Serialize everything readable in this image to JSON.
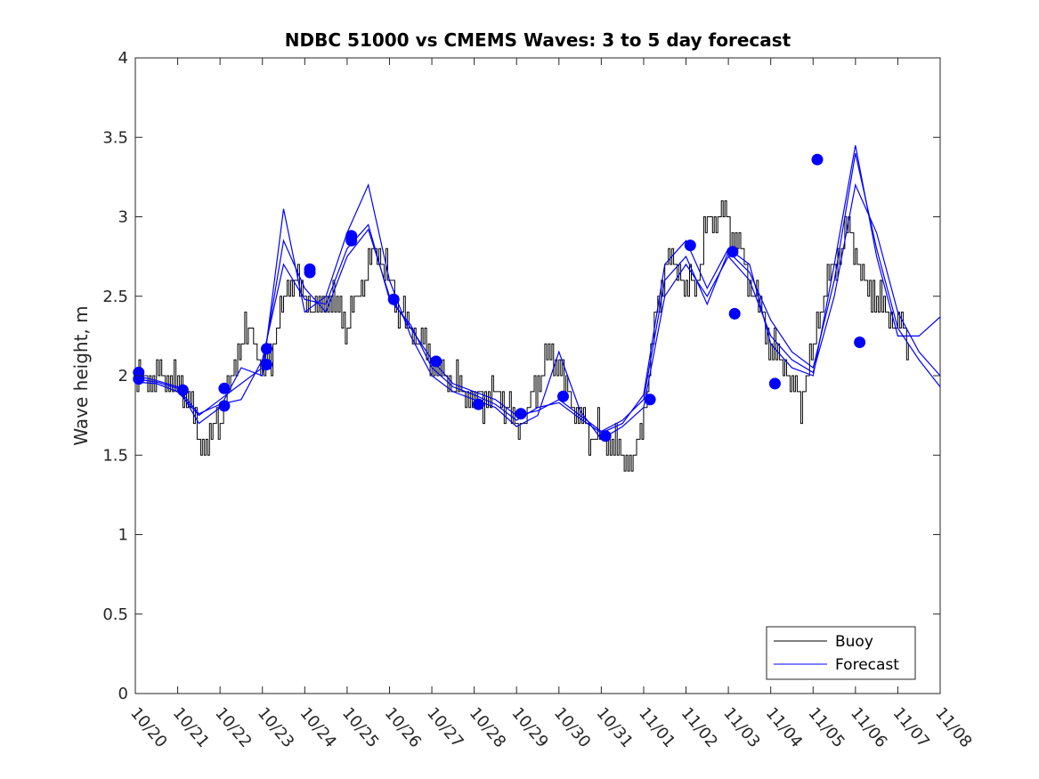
{
  "chart_data": {
    "type": "line",
    "title": "NDBC 51000 vs CMEMS Waves: 3 to 5 day forecast",
    "xlabel": "",
    "ylabel": "Wave height, m",
    "xlim": [
      0,
      19
    ],
    "ylim": [
      0,
      4
    ],
    "x_ticks": [
      0,
      1,
      2,
      3,
      4,
      5,
      6,
      7,
      8,
      9,
      10,
      11,
      12,
      13,
      14,
      15,
      16,
      17,
      18,
      19
    ],
    "x_tick_labels": [
      "10/20",
      "10/21",
      "10/22",
      "10/23",
      "10/24",
      "10/25",
      "10/26",
      "10/27",
      "10/28",
      "10/29",
      "10/30",
      "10/31",
      "11/01",
      "11/02",
      "11/03",
      "11/04",
      "11/05",
      "11/06",
      "11/07",
      "11/08"
    ],
    "y_ticks": [
      0,
      0.5,
      1,
      1.5,
      2,
      2.5,
      3,
      3.5,
      4
    ],
    "y_tick_labels": [
      "0",
      "0.5",
      "1",
      "1.5",
      "2",
      "2.5",
      "3",
      "3.5",
      "4"
    ],
    "colors": {
      "buoy": "#000000",
      "forecast": "#0000ff",
      "markers": "#0000ff",
      "axes": "#262626"
    },
    "legend": {
      "position": "bottom-right",
      "entries": [
        "Buoy",
        "Forecast"
      ]
    },
    "buoy": {
      "name": "Buoy",
      "x": [
        0.0,
        0.25,
        0.5,
        0.75,
        1.0,
        1.25,
        1.5,
        1.75,
        2.0,
        2.25,
        2.5,
        2.75,
        3.0,
        3.25,
        3.5,
        3.75,
        4.0,
        4.25,
        4.5,
        4.75,
        5.0,
        5.25,
        5.5,
        5.75,
        6.0,
        6.25,
        6.5,
        6.75,
        7.0,
        7.25,
        7.5,
        7.75,
        8.0,
        8.25,
        8.5,
        8.75,
        9.0,
        9.25,
        9.5,
        9.75,
        10.0,
        10.25,
        10.5,
        10.75,
        11.0,
        11.25,
        11.5,
        11.75,
        12.0,
        12.25,
        12.5,
        12.75,
        13.0,
        13.25,
        13.5,
        13.75,
        14.0,
        14.25,
        14.5,
        14.75,
        15.0,
        15.25,
        15.5,
        15.75,
        16.0,
        16.25,
        16.5,
        16.75,
        17.0,
        17.25,
        17.5,
        17.75,
        18.0,
        18.25
      ],
      "values": [
        2.0,
        1.95,
        2.0,
        1.98,
        1.92,
        1.85,
        1.6,
        1.6,
        1.72,
        1.95,
        2.2,
        2.3,
        2.0,
        2.2,
        2.5,
        2.6,
        2.5,
        2.4,
        2.5,
        2.45,
        2.3,
        2.5,
        2.7,
        2.8,
        2.6,
        2.4,
        2.3,
        2.2,
        2.1,
        2.0,
        1.95,
        1.9,
        1.85,
        1.85,
        1.9,
        1.8,
        1.7,
        1.75,
        1.95,
        2.15,
        2.05,
        1.85,
        1.75,
        1.6,
        1.6,
        1.55,
        1.5,
        1.45,
        1.75,
        2.3,
        2.7,
        2.7,
        2.55,
        2.6,
        2.95,
        3.0,
        2.95,
        2.8,
        2.6,
        2.4,
        2.2,
        2.1,
        1.95,
        1.85,
        2.2,
        2.5,
        2.7,
        2.9,
        2.8,
        2.55,
        2.5,
        2.4,
        2.3,
        2.2
      ],
      "noise": [
        0.06,
        -0.1,
        0.12,
        -0.08,
        0.1,
        -0.12,
        0.08,
        -0.06,
        0.12,
        -0.1,
        0.15,
        -0.12
      ]
    },
    "forecast_series": [
      {
        "name": "Forecast",
        "x": [
          0,
          0.5,
          1,
          1.5,
          2,
          2.5,
          3,
          3.5,
          4,
          4.5,
          5,
          5.5,
          6,
          6.5,
          7,
          7.5,
          8,
          8.5,
          9,
          9.5,
          10,
          10.5,
          11,
          11.5,
          12,
          12.5,
          13,
          13.5,
          14,
          14.5,
          15,
          15.5,
          16,
          16.5,
          17,
          17.5,
          18,
          18.5,
          19
        ],
        "values": [
          1.96,
          1.95,
          1.9,
          1.75,
          1.85,
          1.95,
          2.05,
          2.85,
          2.55,
          2.4,
          2.75,
          2.92,
          2.5,
          2.3,
          2.1,
          1.95,
          1.9,
          1.85,
          1.75,
          1.78,
          1.85,
          1.75,
          1.65,
          1.72,
          1.85,
          2.6,
          2.75,
          2.45,
          2.78,
          2.65,
          2.35,
          2.15,
          2.05,
          2.6,
          3.4,
          2.8,
          2.3,
          2.1,
          1.93
        ]
      },
      {
        "name": "Forecast",
        "x": [
          0,
          0.5,
          1,
          1.5,
          2,
          2.5,
          3,
          3.5,
          4,
          4.5,
          5,
          5.5,
          6,
          6.5,
          7,
          7.5,
          8,
          8.5,
          9,
          9.5,
          10,
          10.5,
          11,
          11.5,
          12,
          12.5,
          13,
          13.5,
          14,
          14.5,
          15,
          15.5,
          16,
          16.5,
          17,
          17.5,
          18,
          18.5,
          19
        ],
        "values": [
          1.98,
          1.96,
          1.92,
          1.76,
          1.82,
          1.85,
          2.1,
          2.7,
          2.48,
          2.45,
          2.8,
          2.95,
          2.48,
          2.32,
          2.05,
          1.93,
          1.88,
          1.82,
          1.72,
          1.8,
          1.83,
          1.73,
          1.64,
          1.7,
          1.88,
          2.7,
          2.85,
          2.55,
          2.8,
          2.7,
          2.2,
          2.05,
          2.0,
          2.7,
          3.45,
          2.75,
          2.25,
          2.25,
          2.37
        ]
      },
      {
        "name": "Forecast",
        "x": [
          0,
          0.5,
          1,
          1.5,
          2,
          2.5,
          3,
          3.5,
          4,
          4.5,
          5,
          5.5,
          6,
          6.5,
          7,
          7.5,
          8,
          8.5,
          9,
          9.5,
          10,
          10.5,
          11,
          11.5,
          12,
          12.5,
          13,
          13.5,
          14,
          14.5,
          15,
          15.5,
          16,
          16.5,
          17,
          17.5,
          18,
          18.5,
          19
        ],
        "values": [
          2.0,
          1.97,
          1.93,
          1.7,
          1.8,
          2.05,
          2.0,
          3.05,
          2.4,
          2.5,
          2.9,
          3.2,
          2.6,
          2.25,
          2.0,
          1.9,
          1.85,
          1.8,
          1.68,
          1.75,
          2.15,
          1.78,
          1.6,
          1.68,
          1.8,
          2.5,
          2.7,
          2.5,
          2.75,
          2.6,
          2.25,
          2.1,
          2.02,
          2.5,
          3.2,
          2.9,
          2.4,
          2.15,
          2.0
        ]
      }
    ],
    "forecast_markers": {
      "x": [
        0.08,
        0.08,
        1.12,
        2.1,
        2.1,
        3.1,
        3.1,
        4.12,
        4.12,
        5.1,
        5.1,
        6.1,
        7.1,
        8.1,
        9.1,
        10.1,
        11.1,
        12.15,
        13.1,
        14.1,
        14.15,
        15.1,
        16.1,
        17.1
      ],
      "values": [
        2.02,
        1.98,
        1.91,
        1.92,
        1.81,
        2.17,
        2.07,
        2.67,
        2.65,
        2.88,
        2.85,
        2.48,
        2.09,
        1.82,
        1.76,
        1.87,
        1.62,
        1.85,
        2.82,
        2.78,
        2.39,
        1.95,
        3.36,
        2.21
      ]
    }
  }
}
